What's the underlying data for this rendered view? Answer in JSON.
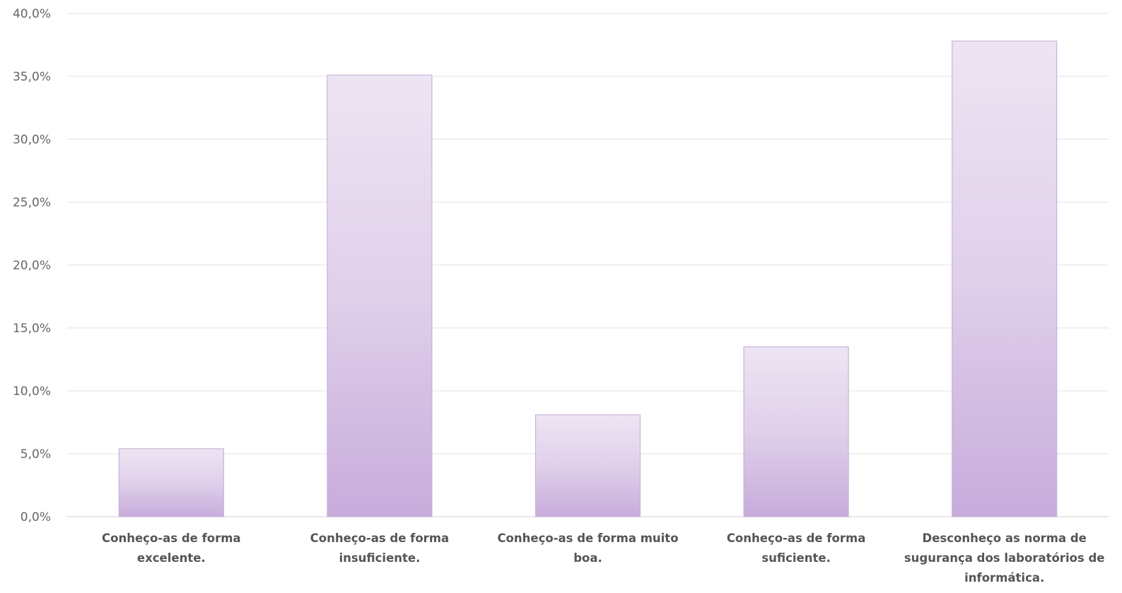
{
  "chart_data": {
    "type": "bar",
    "title": "",
    "xlabel": "",
    "ylabel": "",
    "categories": [
      [
        "Conheço-as de forma",
        "excelente."
      ],
      [
        "Conheço-as de forma",
        "insuficiente."
      ],
      [
        "Conheço-as de forma muito",
        "boa."
      ],
      [
        "Conheço-as de forma",
        "suficiente."
      ],
      [
        "Desconheço as norma de",
        "sugurança dos laboratórios de",
        "informática."
      ]
    ],
    "values": [
      5.4,
      35.1,
      8.1,
      13.5,
      37.8
    ],
    "ylim": [
      0,
      40
    ],
    "yticks": [
      {
        "value": 0,
        "label": "0,0%"
      },
      {
        "value": 5,
        "label": "5,0%"
      },
      {
        "value": 10,
        "label": "10,0%"
      },
      {
        "value": 15,
        "label": "15,0%"
      },
      {
        "value": 20,
        "label": "20,0%"
      },
      {
        "value": 25,
        "label": "25,0%"
      },
      {
        "value": 30,
        "label": "30,0%"
      },
      {
        "value": 35,
        "label": "35,0%"
      },
      {
        "value": 40,
        "label": "40,0%"
      }
    ],
    "grid": true,
    "colors": {
      "bar_top": "#ede5f3",
      "bar_mid": "#e0d0ea",
      "bar_bottom": "#c7acdc",
      "bar_border": "#c9b2da",
      "grid": "#e2e2e2",
      "text": "#595959"
    }
  }
}
